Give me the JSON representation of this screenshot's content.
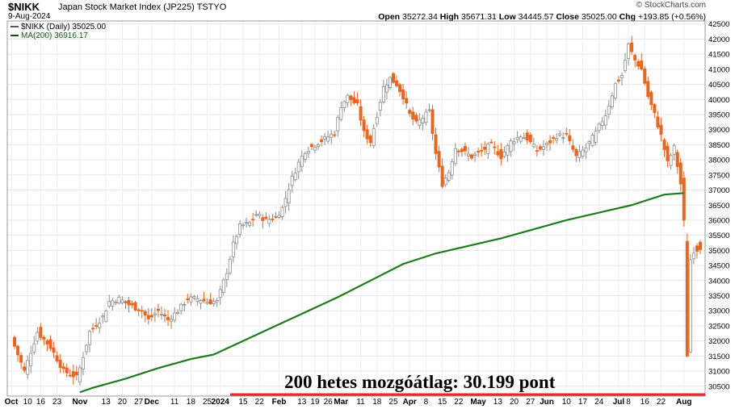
{
  "header": {
    "symbol": "$NIKK",
    "name": "Japan Stock Market Index (JP225)",
    "exchange": "TSTYO",
    "date": "9-Aug-2024",
    "copyright": "© StockCharts.com",
    "open_label": "Open",
    "open": "35272.34",
    "high_label": "High",
    "high": "35671.31",
    "low_label": "Low",
    "low": "34445.57",
    "close_label": "Close",
    "close": "35025.00",
    "chg_label": "Chg",
    "chg": "+193.85 (+0.56%)"
  },
  "legend": [
    {
      "label": "$NIKK (Daily) 35025.00",
      "color": "#555555"
    },
    {
      "label": "MA(200) 36916.17",
      "color": "#145214"
    }
  ],
  "annotation": {
    "text": "200 hetes mozgóátlag: 30.199 pont",
    "value": 30199,
    "line_color": "#e8262d"
  },
  "colors": {
    "up": "#8c8c8c",
    "down": "#e9661e",
    "ma": "#1f7a1f"
  },
  "chart_data": {
    "type": "candlestick",
    "title": "",
    "ylim": [
      30200,
      42600
    ],
    "y_ticks": [
      30500,
      31000,
      31500,
      32000,
      32500,
      33000,
      33500,
      34000,
      34500,
      35000,
      35500,
      36000,
      36500,
      37000,
      37500,
      38000,
      38500,
      39000,
      39500,
      40000,
      40500,
      41000,
      41500,
      42000,
      42500
    ],
    "x_labels": [
      {
        "t": "Oct",
        "i": 0,
        "bold": true
      },
      {
        "t": "10",
        "i": 5
      },
      {
        "t": "16",
        "i": 9
      },
      {
        "t": "23",
        "i": 14
      },
      {
        "t": "Nov",
        "i": 21,
        "bold": true
      },
      {
        "t": "13",
        "i": 29
      },
      {
        "t": "20",
        "i": 34
      },
      {
        "t": "27",
        "i": 39
      },
      {
        "t": "Dec",
        "i": 43,
        "bold": true
      },
      {
        "t": "11",
        "i": 50
      },
      {
        "t": "18",
        "i": 55
      },
      {
        "t": "25",
        "i": 60
      },
      {
        "t": "2024",
        "i": 64,
        "bold": true
      },
      {
        "t": "15",
        "i": 71
      },
      {
        "t": "22",
        "i": 76
      },
      {
        "t": "Feb",
        "i": 82,
        "bold": true
      },
      {
        "t": "13",
        "i": 89
      },
      {
        "t": "19",
        "i": 93
      },
      {
        "t": "26",
        "i": 97
      },
      {
        "t": "Mar",
        "i": 101,
        "bold": true
      },
      {
        "t": "11",
        "i": 107
      },
      {
        "t": "18",
        "i": 112
      },
      {
        "t": "25",
        "i": 117
      },
      {
        "t": "Apr",
        "i": 122,
        "bold": true
      },
      {
        "t": "8",
        "i": 127
      },
      {
        "t": "15",
        "i": 132
      },
      {
        "t": "22",
        "i": 137
      },
      {
        "t": "May",
        "i": 143,
        "bold": true
      },
      {
        "t": "13",
        "i": 149
      },
      {
        "t": "20",
        "i": 154
      },
      {
        "t": "27",
        "i": 159
      },
      {
        "t": "Jun",
        "i": 164,
        "bold": true
      },
      {
        "t": "10",
        "i": 170
      },
      {
        "t": "17",
        "i": 175
      },
      {
        "t": "24",
        "i": 180
      },
      {
        "t": "Jul",
        "i": 186,
        "bold": true
      },
      {
        "t": "8",
        "i": 189
      },
      {
        "t": "16",
        "i": 194
      },
      {
        "t": "22",
        "i": 199
      },
      {
        "t": "Aug",
        "i": 206,
        "bold": true
      }
    ],
    "series": [
      {
        "name": "$NIKK (Daily)",
        "kind": "ohlc",
        "close_path": [
          [
            0,
            32100
          ],
          [
            4,
            31000
          ],
          [
            8,
            32300
          ],
          [
            12,
            31800
          ],
          [
            16,
            31000
          ],
          [
            20,
            30800
          ],
          [
            21,
            31100
          ],
          [
            24,
            32300
          ],
          [
            28,
            32800
          ],
          [
            30,
            33300
          ],
          [
            33,
            33400
          ],
          [
            36,
            33200
          ],
          [
            40,
            33000
          ],
          [
            42,
            32700
          ],
          [
            45,
            33000
          ],
          [
            48,
            32700
          ],
          [
            51,
            33000
          ],
          [
            54,
            33400
          ],
          [
            57,
            33400
          ],
          [
            60,
            33300
          ],
          [
            63,
            33300
          ],
          [
            66,
            34300
          ],
          [
            68,
            35200
          ],
          [
            70,
            35800
          ],
          [
            73,
            35900
          ],
          [
            75,
            36200
          ],
          [
            78,
            36000
          ],
          [
            81,
            36100
          ],
          [
            83,
            36400
          ],
          [
            86,
            37400
          ],
          [
            88,
            37900
          ],
          [
            90,
            38300
          ],
          [
            93,
            38500
          ],
          [
            96,
            38700
          ],
          [
            99,
            38900
          ],
          [
            101,
            39800
          ],
          [
            103,
            40100
          ],
          [
            106,
            39800
          ],
          [
            108,
            38900
          ],
          [
            110,
            38600
          ],
          [
            112,
            39500
          ],
          [
            114,
            40400
          ],
          [
            116,
            40700
          ],
          [
            118,
            40500
          ],
          [
            120,
            40100
          ],
          [
            122,
            39500
          ],
          [
            124,
            39200
          ],
          [
            126,
            39400
          ],
          [
            128,
            39600
          ],
          [
            130,
            38200
          ],
          [
            132,
            37200
          ],
          [
            134,
            37600
          ],
          [
            136,
            38400
          ],
          [
            138,
            38300
          ],
          [
            141,
            38100
          ],
          [
            144,
            38300
          ],
          [
            147,
            38500
          ],
          [
            150,
            38100
          ],
          [
            153,
            38600
          ],
          [
            156,
            38800
          ],
          [
            158,
            38700
          ],
          [
            161,
            38300
          ],
          [
            164,
            38500
          ],
          [
            167,
            38800
          ],
          [
            170,
            38800
          ],
          [
            173,
            38100
          ],
          [
            176,
            38400
          ],
          [
            179,
            38900
          ],
          [
            182,
            39500
          ],
          [
            185,
            40500
          ],
          [
            187,
            40800
          ],
          [
            189,
            41800
          ],
          [
            191,
            41300
          ],
          [
            193,
            41000
          ],
          [
            195,
            40100
          ],
          [
            197,
            39500
          ],
          [
            199,
            38800
          ],
          [
            201,
            37900
          ],
          [
            203,
            38400
          ],
          [
            205,
            37200
          ],
          [
            206,
            36000
          ],
          [
            207,
            31500
          ],
          [
            208,
            34700
          ],
          [
            209,
            35000
          ],
          [
            210,
            35025
          ]
        ]
      },
      {
        "name": "MA(200)",
        "kind": "line",
        "points": [
          [
            21,
            30300
          ],
          [
            25,
            30450
          ],
          [
            35,
            30750
          ],
          [
            45,
            31100
          ],
          [
            55,
            31400
          ],
          [
            62,
            31550
          ],
          [
            70,
            31950
          ],
          [
            80,
            32450
          ],
          [
            90,
            32950
          ],
          [
            100,
            33450
          ],
          [
            110,
            34000
          ],
          [
            120,
            34550
          ],
          [
            130,
            34900
          ],
          [
            140,
            35150
          ],
          [
            150,
            35400
          ],
          [
            160,
            35700
          ],
          [
            170,
            36000
          ],
          [
            180,
            36250
          ],
          [
            190,
            36500
          ],
          [
            200,
            36850
          ],
          [
            206,
            36900
          ]
        ]
      }
    ]
  }
}
